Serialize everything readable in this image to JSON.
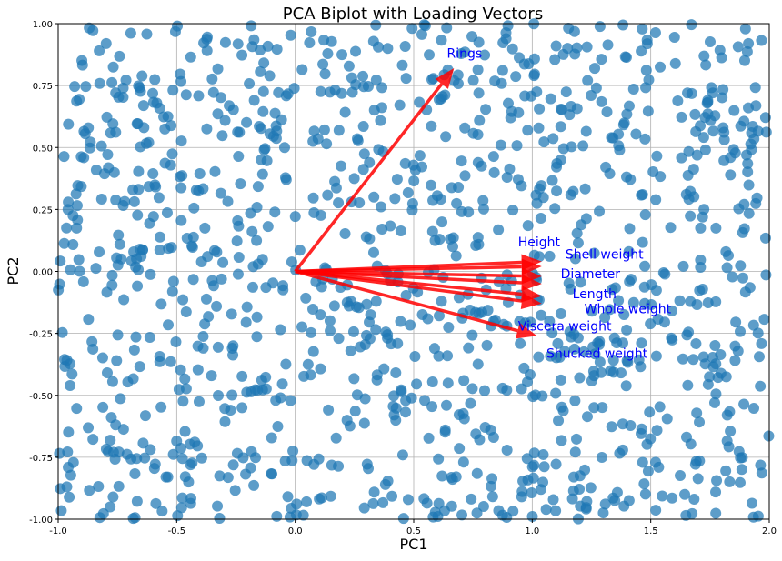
{
  "chart_data": {
    "type": "scatter",
    "title": "PCA Biplot with Loading Vectors",
    "xlabel": "PC1",
    "ylabel": "PC2",
    "xlim": [
      -1.0,
      2.0
    ],
    "ylim": [
      -1.0,
      1.0
    ],
    "x_ticks": [
      "-1.0",
      "-0.5",
      "0.0",
      "0.5",
      "1.0",
      "1.5",
      "2.0"
    ],
    "y_ticks": [
      "-1.00",
      "-0.75",
      "-0.50",
      "-0.25",
      "0.00",
      "0.25",
      "0.50",
      "0.75",
      "1.00"
    ],
    "grid": true,
    "point_color": "#1f77b4",
    "arrow_color": "#ff0000",
    "label_color": "#0000ff",
    "point_count_estimate": 1200,
    "point_distribution": "dense uniform spread over x in [-1.0, 2.0] and y in [-1.0, 1.0]",
    "loading_vectors": [
      {
        "name": "Rings",
        "x": 0.67,
        "y": 0.82,
        "label_x": 0.64,
        "label_y": 0.88
      },
      {
        "name": "Height",
        "x": 1.04,
        "y": 0.04,
        "label_x": 0.94,
        "label_y": 0.12
      },
      {
        "name": "Shell weight",
        "x": 1.04,
        "y": 0.02,
        "label_x": 1.14,
        "label_y": 0.07
      },
      {
        "name": "Diameter",
        "x": 1.04,
        "y": -0.02,
        "label_x": 1.12,
        "label_y": -0.01
      },
      {
        "name": "Length",
        "x": 1.04,
        "y": -0.05,
        "label_x": 1.17,
        "label_y": -0.09
      },
      {
        "name": "Whole weight",
        "x": 1.04,
        "y": -0.1,
        "label_x": 1.22,
        "label_y": -0.15
      },
      {
        "name": "Viscera weight",
        "x": 1.04,
        "y": -0.13,
        "label_x": 0.94,
        "label_y": -0.22
      },
      {
        "name": "Shucked weight",
        "x": 1.02,
        "y": -0.26,
        "label_x": 1.06,
        "label_y": -0.33
      }
    ]
  }
}
